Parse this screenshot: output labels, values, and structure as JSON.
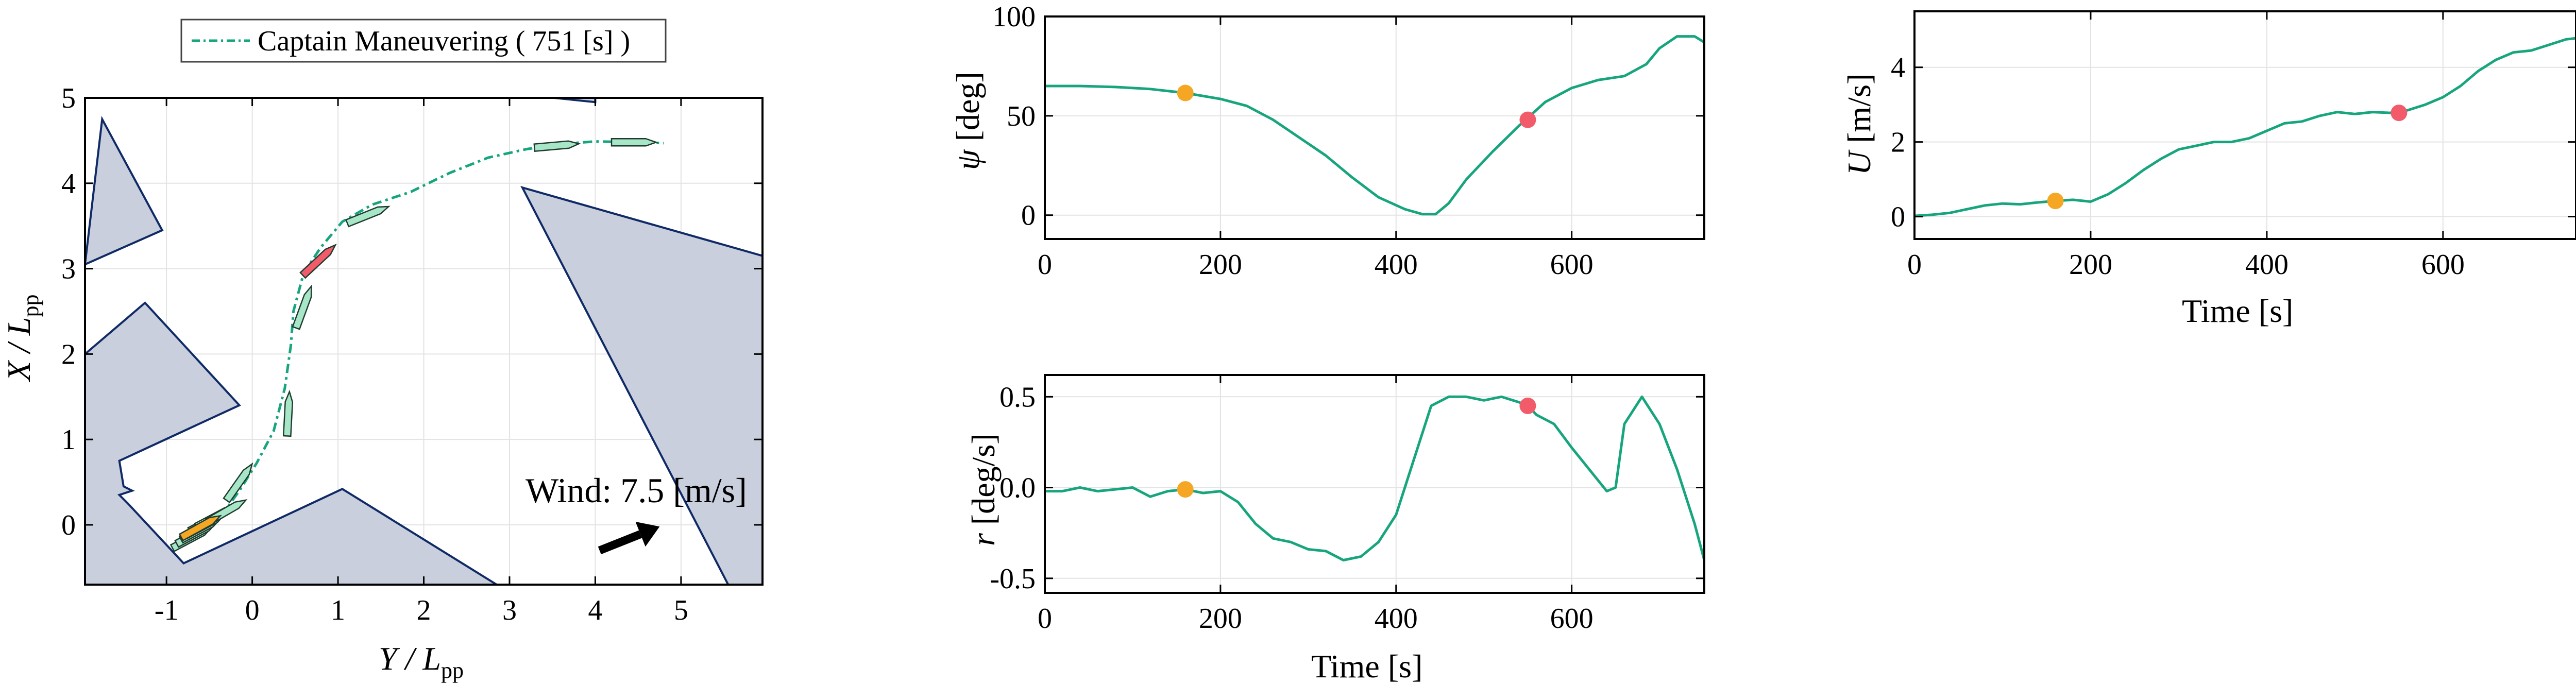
{
  "colors": {
    "trajectory": "#17A57E",
    "ship_fill": "#A8E6C8",
    "ship_stroke": "#1F3B2F",
    "marker_orange": "#F5A623",
    "marker_red": "#F25C6A",
    "obstacle_fill": "#C9CFDD",
    "obstacle_stroke": "#0F2A66",
    "grid": "#E3E3E3"
  },
  "chart_data": [
    {
      "id": "map",
      "type": "line",
      "legend": "Captain Maneuvering ( 751 [s] )",
      "wind_label": "Wind: 7.5 [m/s]",
      "xlabel_main": "Y / L",
      "xlabel_sub": "pp",
      "ylabel_main": "X / L",
      "ylabel_sub": "pp",
      "xlim": [
        -1.95,
        5.95
      ],
      "ylim": [
        -0.7,
        5.0
      ],
      "xticks": [
        -1,
        0,
        1,
        2,
        3,
        4,
        5
      ],
      "yticks": [
        0,
        1,
        2,
        3,
        4,
        5
      ],
      "xtick_labels": [
        "-1",
        "0",
        "1",
        "2",
        "3",
        "4",
        "5"
      ],
      "ytick_labels": [
        "0",
        "1",
        "2",
        "3",
        "4",
        "5"
      ],
      "path": [
        [
          -0.75,
          -0.18
        ],
        [
          -0.55,
          -0.06
        ],
        [
          -0.35,
          0.12
        ],
        [
          -0.15,
          0.4
        ],
        [
          0.05,
          0.72
        ],
        [
          0.25,
          1.1
        ],
        [
          0.38,
          1.6
        ],
        [
          0.45,
          2.1
        ],
        [
          0.48,
          2.5
        ],
        [
          0.6,
          2.95
        ],
        [
          0.8,
          3.25
        ],
        [
          1.05,
          3.55
        ],
        [
          1.4,
          3.75
        ],
        [
          1.85,
          3.9
        ],
        [
          2.3,
          4.12
        ],
        [
          2.75,
          4.3
        ],
        [
          3.2,
          4.4
        ],
        [
          3.6,
          4.46
        ],
        [
          4.0,
          4.49
        ],
        [
          4.5,
          4.48
        ],
        [
          4.8,
          4.47
        ]
      ],
      "ships": [
        {
          "x": -0.7,
          "y": -0.15,
          "heading": 62,
          "color": "ship"
        },
        {
          "x": -0.65,
          "y": -0.1,
          "heading": 62,
          "color": "ship"
        },
        {
          "x": -0.6,
          "y": -0.05,
          "heading": 62,
          "color": "ship"
        },
        {
          "x": -0.55,
          "y": 0.0,
          "heading": 62,
          "color": "ship"
        },
        {
          "x": -0.5,
          "y": 0.05,
          "heading": 62,
          "color": "ship"
        },
        {
          "x": -0.42,
          "y": 0.1,
          "heading": 62,
          "color": "ship"
        },
        {
          "x": -0.3,
          "y": 0.16,
          "heading": 60,
          "color": "ship"
        },
        {
          "x": -0.6,
          "y": -0.02,
          "heading": 61,
          "color": "orange"
        },
        {
          "x": -0.15,
          "y": 0.5,
          "heading": 35,
          "color": "ship"
        },
        {
          "x": 0.42,
          "y": 1.3,
          "heading": 3,
          "color": "ship"
        },
        {
          "x": 0.6,
          "y": 2.55,
          "heading": 20,
          "color": "ship"
        },
        {
          "x": 0.78,
          "y": 3.1,
          "heading": 47,
          "color": "red"
        },
        {
          "x": 1.35,
          "y": 3.63,
          "heading": 68,
          "color": "ship"
        },
        {
          "x": 3.55,
          "y": 4.44,
          "heading": 85,
          "color": "ship"
        },
        {
          "x": 4.45,
          "y": 4.48,
          "heading": 90,
          "color": "ship"
        }
      ],
      "obstacles": [
        [
          [
            -1.95,
            3.05
          ],
          [
            -1.75,
            4.75
          ],
          [
            -1.05,
            3.45
          ],
          [
            -1.95,
            3.05
          ]
        ],
        [
          [
            -1.95,
            2.0
          ],
          [
            -1.25,
            2.6
          ],
          [
            -0.15,
            1.4
          ],
          [
            -1.55,
            0.75
          ],
          [
            -1.5,
            0.45
          ],
          [
            -1.4,
            0.4
          ],
          [
            -1.55,
            0.35
          ],
          [
            -1.45,
            0.25
          ],
          [
            -0.8,
            -0.45
          ],
          [
            1.05,
            0.42
          ],
          [
            2.85,
            -0.7
          ],
          [
            -1.95,
            -0.7
          ]
        ],
        [
          [
            2.75,
            5.0
          ],
          [
            2.75,
            5.08
          ],
          [
            4.0,
            4.95
          ],
          [
            4.0,
            5.0
          ]
        ],
        [
          [
            3.15,
            3.95
          ],
          [
            5.95,
            3.15
          ],
          [
            5.95,
            -0.7
          ],
          [
            5.55,
            -0.7
          ]
        ]
      ],
      "wind_arrow": {
        "x1": 4.05,
        "y1": -0.3,
        "x2": 4.75,
        "y2": -0.02
      }
    },
    {
      "id": "psi",
      "type": "line",
      "ylabel_main": "ψ",
      "ylabel_unit": " [deg]",
      "xlabel": "",
      "xlim": [
        0,
        751
      ],
      "ylim": [
        -12,
        100
      ],
      "xticks": [
        0,
        200,
        400,
        600
      ],
      "yticks": [
        0,
        50,
        100
      ],
      "xtick_labels": [
        "0",
        "200",
        "400",
        "600"
      ],
      "ytick_labels": [
        "0",
        "50",
        "100"
      ],
      "x": [
        0,
        40,
        80,
        120,
        160,
        200,
        230,
        260,
        290,
        320,
        350,
        380,
        410,
        430,
        445,
        460,
        480,
        510,
        540,
        570,
        600,
        630,
        660,
        685,
        700,
        720,
        740,
        751
      ],
      "y": [
        65,
        65,
        64.5,
        63.5,
        61.5,
        58.5,
        55,
        48,
        39,
        30,
        19,
        9,
        3,
        0.5,
        0.5,
        6,
        18,
        32,
        45,
        57,
        64,
        68,
        70,
        76,
        84,
        90,
        90,
        87
      ],
      "markers": [
        {
          "x": 160,
          "y": 61.5,
          "color": "orange"
        },
        {
          "x": 550,
          "y": 48,
          "color": "red"
        }
      ]
    },
    {
      "id": "u",
      "type": "line",
      "ylabel_main": "U",
      "ylabel_unit": " [m/s]",
      "xlabel": "Time [s]",
      "xlim": [
        0,
        751
      ],
      "ylim": [
        -0.6,
        5.5
      ],
      "xticks": [
        0,
        200,
        400,
        600
      ],
      "yticks": [
        0,
        2,
        4
      ],
      "xtick_labels": [
        "0",
        "200",
        "400",
        "600"
      ],
      "ytick_labels": [
        "0",
        "2",
        "4"
      ],
      "x": [
        0,
        20,
        40,
        60,
        80,
        100,
        120,
        140,
        160,
        180,
        200,
        220,
        240,
        260,
        280,
        300,
        320,
        340,
        360,
        380,
        400,
        420,
        440,
        460,
        480,
        500,
        520,
        540,
        560,
        580,
        600,
        620,
        640,
        660,
        680,
        700,
        720,
        740,
        751
      ],
      "y": [
        0.02,
        0.05,
        0.1,
        0.2,
        0.3,
        0.35,
        0.33,
        0.38,
        0.42,
        0.45,
        0.4,
        0.6,
        0.9,
        1.25,
        1.55,
        1.8,
        1.9,
        2.0,
        2.0,
        2.1,
        2.3,
        2.5,
        2.55,
        2.7,
        2.8,
        2.75,
        2.8,
        2.78,
        2.85,
        3.0,
        3.2,
        3.5,
        3.9,
        4.2,
        4.4,
        4.45,
        4.6,
        4.75,
        4.78
      ],
      "markers": [
        {
          "x": 160,
          "y": 0.42,
          "color": "orange"
        },
        {
          "x": 550,
          "y": 2.78,
          "color": "red"
        }
      ]
    },
    {
      "id": "r",
      "type": "line",
      "ylabel_main": "r",
      "ylabel_unit": " [deg/s]",
      "xlabel": "Time [s]",
      "xlim": [
        0,
        751
      ],
      "ylim": [
        -0.58,
        0.62
      ],
      "xticks": [
        0,
        200,
        400,
        600
      ],
      "yticks": [
        -0.5,
        0.0,
        0.5
      ],
      "xtick_labels": [
        "0",
        "200",
        "400",
        "600"
      ],
      "ytick_labels": [
        "-0.5",
        "0.0",
        "0.5"
      ],
      "x": [
        0,
        20,
        40,
        60,
        80,
        100,
        120,
        140,
        160,
        180,
        200,
        220,
        240,
        260,
        280,
        300,
        320,
        340,
        360,
        380,
        400,
        420,
        440,
        460,
        480,
        500,
        520,
        540,
        550,
        560,
        580,
        600,
        620,
        640,
        650,
        660,
        680,
        700,
        720,
        740,
        751
      ],
      "y": [
        -0.02,
        -0.02,
        0.0,
        -0.02,
        -0.01,
        0.0,
        -0.05,
        -0.02,
        -0.01,
        -0.03,
        -0.02,
        -0.08,
        -0.2,
        -0.28,
        -0.3,
        -0.34,
        -0.35,
        -0.4,
        -0.38,
        -0.3,
        -0.15,
        0.15,
        0.45,
        0.5,
        0.5,
        0.48,
        0.5,
        0.47,
        0.45,
        0.4,
        0.35,
        0.22,
        0.1,
        -0.02,
        0.0,
        0.35,
        0.5,
        0.35,
        0.1,
        -0.2,
        -0.4
      ],
      "markers": [
        {
          "x": 160,
          "y": -0.01,
          "color": "orange"
        },
        {
          "x": 550,
          "y": 0.45,
          "color": "red"
        }
      ]
    }
  ]
}
